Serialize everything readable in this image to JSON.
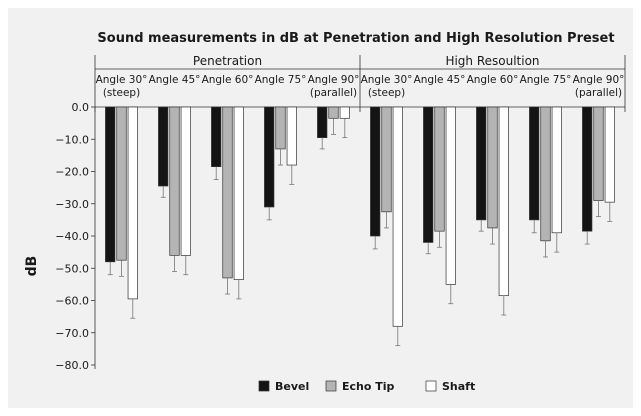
{
  "chart_data": {
    "type": "bar",
    "title": "Sound measurements in dB at Penetration and High Resolution Preset",
    "ylabel": "dB",
    "xlabel": "",
    "ylim": [
      -80,
      0
    ],
    "yticks": [
      "0.0",
      "−10.0",
      "−20.0",
      "−30.0",
      "−40.0",
      "−50.0",
      "−60.0",
      "−70.0",
      "−80.0"
    ],
    "ytick_values": [
      0,
      -10,
      -20,
      -30,
      -40,
      -50,
      -60,
      -70,
      -80
    ],
    "groups": [
      "Penetration",
      "High Resoultion"
    ],
    "categories": [
      [
        "Angle 30°",
        "(steep)"
      ],
      [
        "Angle 45°"
      ],
      [
        "Angle 60°"
      ],
      [
        "Angle 75°"
      ],
      [
        "Angle 90°",
        "(parallel)"
      ],
      [
        "Angle 30°",
        "(steep)"
      ],
      [
        "Angle 45°"
      ],
      [
        "Angle 60°"
      ],
      [
        "Angle 75°"
      ],
      [
        "Angle 90°",
        "(parallel)"
      ]
    ],
    "series": [
      {
        "name": "Bevel",
        "color": "#141414",
        "values": [
          -48,
          -24.5,
          -18.5,
          -31,
          -9.5,
          -40,
          -42,
          -35,
          -35,
          -38.5
        ],
        "errors": [
          4,
          3.5,
          4,
          4,
          3.5,
          4,
          3.5,
          3.5,
          4,
          4
        ]
      },
      {
        "name": "Echo Tip",
        "color": "#b4b4b4",
        "values": [
          -47.5,
          -46,
          -53,
          -13,
          -3.5,
          -32.5,
          -38.5,
          -37.5,
          -41.5,
          -29
        ],
        "errors": [
          5,
          5,
          5,
          5,
          5,
          5,
          5,
          5,
          5,
          5
        ]
      },
      {
        "name": "Shaft",
        "color": "#ffffff",
        "values": [
          -59.5,
          -46,
          -53.5,
          -18,
          -3.5,
          -68,
          -55,
          -58.5,
          -39,
          -29.5
        ],
        "errors": [
          6,
          6,
          6,
          6,
          6,
          6,
          6,
          6,
          6,
          6
        ]
      }
    ],
    "legend": "bottom-center",
    "grid": false
  }
}
